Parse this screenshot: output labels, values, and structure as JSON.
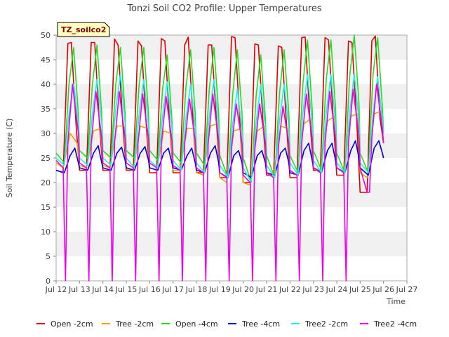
{
  "chart_data": {
    "type": "line",
    "title": "Tonzi Soil CO2 Profile: Upper Temperatures",
    "xlabel": "Time",
    "ylabel": "Soil Temperature (C)",
    "tag": "TZ_soilco2",
    "xlim": [
      12,
      27
    ],
    "ylim": [
      0,
      50
    ],
    "x_ticks": [
      12,
      13,
      14,
      15,
      16,
      17,
      18,
      19,
      20,
      21,
      22,
      23,
      24,
      25,
      26,
      27
    ],
    "x_tick_labels": [
      "Jul 12",
      "Jul 13",
      "Jul 14",
      "Jul 15",
      "Jul 16",
      "Jul 17",
      "Jul 18",
      "Jul 19",
      "Jul 20",
      "Jul 21",
      "Jul 22",
      "Jul 23",
      "Jul 24",
      "Jul 25",
      "Jul 26",
      "Jul 27"
    ],
    "y_ticks": [
      0,
      5,
      10,
      15,
      20,
      25,
      30,
      35,
      40,
      45,
      50
    ],
    "grid": "horizontal bands",
    "legend_position": "bottom",
    "series": [
      {
        "name": "Open -2cm",
        "color": "#dd0000",
        "x": [
          12.0,
          12.3,
          12.5,
          12.65,
          12.85,
          13.0,
          13.3,
          13.5,
          13.65,
          13.85,
          14.0,
          14.3,
          14.5,
          14.65,
          14.85,
          15.0,
          15.3,
          15.5,
          15.65,
          15.85,
          16.0,
          16.3,
          16.5,
          16.65,
          16.85,
          17.0,
          17.3,
          17.5,
          17.65,
          17.85,
          18.0,
          18.3,
          18.5,
          18.65,
          18.85,
          19.0,
          19.3,
          19.5,
          19.65,
          19.85,
          20.0,
          20.3,
          20.5,
          20.65,
          20.85,
          21.0,
          21.3,
          21.5,
          21.65,
          21.85,
          22.0,
          22.3,
          22.5,
          22.65,
          22.85,
          23.0,
          23.3,
          23.5,
          23.65,
          23.85,
          24.0,
          24.3,
          24.5,
          24.65,
          24.85,
          25.0,
          25.3,
          25.5,
          25.65,
          25.85,
          26.0
        ],
        "values": [
          22.5,
          22.0,
          48.3,
          48.5,
          32.0,
          22.5,
          22.5,
          48.5,
          48.5,
          32.0,
          22.5,
          22.5,
          49.2,
          48.0,
          32.0,
          22.5,
          22.5,
          48.8,
          47.8,
          32.0,
          22.0,
          22.0,
          49.3,
          48.8,
          32.0,
          22.0,
          22.0,
          48.0,
          49.6,
          33.0,
          22.0,
          22.0,
          48.0,
          48.0,
          33.0,
          21.0,
          21.0,
          49.7,
          49.5,
          33.0,
          20.0,
          20.0,
          48.2,
          48.0,
          32.0,
          21.5,
          21.5,
          47.8,
          47.5,
          32.0,
          21.0,
          21.0,
          49.5,
          49.6,
          33.0,
          22.5,
          22.5,
          49.5,
          49.0,
          33.0,
          21.5,
          21.5,
          48.8,
          48.5,
          33.0,
          18.0,
          18.0,
          48.8,
          49.8,
          33.0,
          28.0
        ]
      },
      {
        "name": "Tree -2cm",
        "color": "#f0a000",
        "x": [
          12.0,
          12.3,
          12.6,
          12.9,
          13.0,
          13.3,
          13.6,
          13.9,
          14.0,
          14.3,
          14.6,
          14.9,
          15.0,
          15.3,
          15.6,
          15.9,
          16.0,
          16.3,
          16.6,
          16.9,
          17.0,
          17.3,
          17.6,
          17.9,
          18.0,
          18.3,
          18.6,
          18.9,
          19.0,
          19.3,
          19.6,
          19.9,
          20.0,
          20.3,
          20.6,
          20.9,
          21.0,
          21.3,
          21.6,
          21.9,
          22.0,
          22.3,
          22.6,
          22.9,
          23.0,
          23.3,
          23.6,
          23.9,
          24.0,
          24.3,
          24.6,
          24.9,
          25.0,
          25.3,
          25.6,
          25.9,
          26.0
        ],
        "values": [
          24.0,
          23.0,
          30.0,
          28.0,
          23.5,
          23.0,
          30.5,
          31.0,
          23.5,
          23.0,
          31.5,
          31.5,
          23.0,
          22.5,
          31.5,
          31.0,
          23.0,
          22.5,
          30.5,
          30.0,
          22.5,
          22.5,
          31.0,
          31.0,
          22.0,
          21.5,
          31.5,
          32.0,
          21.0,
          20.0,
          30.5,
          31.0,
          20.0,
          19.5,
          30.5,
          31.5,
          22.0,
          21.5,
          31.5,
          31.0,
          22.5,
          21.5,
          32.0,
          33.0,
          23.0,
          22.5,
          32.5,
          33.5,
          23.0,
          22.0,
          33.5,
          34.0,
          22.0,
          21.0,
          34.0,
          34.5,
          30.0
        ]
      },
      {
        "name": "Open -4cm",
        "color": "#22dd22",
        "x": [
          12.0,
          12.35,
          12.55,
          12.75,
          12.95,
          13.0,
          13.35,
          13.55,
          13.75,
          13.95,
          14.0,
          14.35,
          14.55,
          14.75,
          14.95,
          15.0,
          15.35,
          15.55,
          15.75,
          15.95,
          16.0,
          16.35,
          16.55,
          16.75,
          16.95,
          17.0,
          17.35,
          17.55,
          17.75,
          17.95,
          18.0,
          18.35,
          18.55,
          18.75,
          18.95,
          19.0,
          19.35,
          19.55,
          19.75,
          19.95,
          20.0,
          20.35,
          20.55,
          20.75,
          20.95,
          21.0,
          21.35,
          21.55,
          21.75,
          21.95,
          22.0,
          22.35,
          22.55,
          22.75,
          22.95,
          23.0,
          23.35,
          23.55,
          23.75,
          23.95,
          24.0,
          24.35,
          24.55,
          24.75,
          24.95,
          25.0,
          25.35,
          25.55,
          25.75,
          25.95,
          26.0
        ],
        "values": [
          26.0,
          24.0,
          40.0,
          47.5,
          34.0,
          26.5,
          25.0,
          40.0,
          48.0,
          34.0,
          26.5,
          25.0,
          40.0,
          47.5,
          34.0,
          26.5,
          25.0,
          40.0,
          47.5,
          34.0,
          26.5,
          24.5,
          39.0,
          46.0,
          33.0,
          26.0,
          24.0,
          39.5,
          47.0,
          34.0,
          26.0,
          23.5,
          39.0,
          47.5,
          34.0,
          25.5,
          21.0,
          38.0,
          47.0,
          34.0,
          25.0,
          20.0,
          37.5,
          46.0,
          33.0,
          25.5,
          21.0,
          38.0,
          47.0,
          34.0,
          25.5,
          22.0,
          40.0,
          49.0,
          35.0,
          26.5,
          22.5,
          41.0,
          49.0,
          35.0,
          26.0,
          22.0,
          41.5,
          50.0,
          36.0,
          26.0,
          22.0,
          42.0,
          49.5,
          35.5,
          30.0
        ]
      },
      {
        "name": "Tree -4cm",
        "color": "#0000cc",
        "x": [
          12.0,
          12.35,
          12.6,
          12.8,
          12.95,
          13.0,
          13.35,
          13.6,
          13.8,
          13.95,
          14.0,
          14.35,
          14.6,
          14.8,
          14.95,
          15.0,
          15.35,
          15.6,
          15.8,
          15.95,
          16.0,
          16.35,
          16.6,
          16.8,
          16.95,
          17.0,
          17.35,
          17.6,
          17.8,
          17.95,
          18.0,
          18.35,
          18.6,
          18.8,
          18.95,
          19.0,
          19.35,
          19.6,
          19.8,
          19.95,
          20.0,
          20.35,
          20.6,
          20.8,
          20.95,
          21.0,
          21.35,
          21.6,
          21.8,
          21.95,
          22.0,
          22.35,
          22.6,
          22.8,
          22.95,
          23.0,
          23.35,
          23.6,
          23.8,
          23.95,
          24.0,
          24.35,
          24.6,
          24.8,
          24.95,
          25.0,
          25.35,
          25.6,
          25.8,
          25.95,
          26.0
        ],
        "values": [
          22.5,
          22.0,
          25.5,
          27.0,
          24.0,
          23.0,
          22.5,
          26.0,
          27.5,
          24.0,
          23.0,
          22.5,
          26.0,
          27.2,
          24.5,
          23.0,
          22.5,
          26.0,
          27.3,
          24.5,
          23.0,
          22.5,
          26.0,
          27.0,
          24.0,
          23.0,
          22.5,
          25.5,
          27.0,
          24.0,
          22.5,
          22.0,
          26.0,
          27.5,
          24.0,
          22.0,
          21.0,
          25.5,
          26.5,
          24.0,
          22.0,
          21.0,
          25.5,
          26.5,
          24.0,
          22.0,
          21.5,
          26.0,
          27.0,
          24.0,
          22.0,
          21.5,
          26.5,
          28.0,
          24.5,
          23.0,
          22.0,
          26.5,
          28.0,
          24.5,
          23.0,
          22.0,
          26.5,
          28.5,
          25.0,
          23.0,
          21.5,
          27.0,
          28.5,
          26.0,
          25.0
        ]
      },
      {
        "name": "Tree2 -2cm",
        "color": "#22eeee",
        "x": [
          12.0,
          12.35,
          12.55,
          12.75,
          12.95,
          13.0,
          13.35,
          13.55,
          13.75,
          13.95,
          14.0,
          14.35,
          14.55,
          14.75,
          14.95,
          15.0,
          15.35,
          15.55,
          15.75,
          15.95,
          16.0,
          16.35,
          16.55,
          16.75,
          16.95,
          17.0,
          17.35,
          17.55,
          17.75,
          17.95,
          18.0,
          18.35,
          18.55,
          18.75,
          18.95,
          19.0,
          19.35,
          19.55,
          19.75,
          19.95,
          20.0,
          20.35,
          20.55,
          20.75,
          20.95,
          21.0,
          21.35,
          21.55,
          21.75,
          21.95,
          22.0,
          22.35,
          22.55,
          22.75,
          22.95,
          23.0,
          23.35,
          23.55,
          23.75,
          23.95,
          24.0,
          24.35,
          24.55,
          24.75,
          24.95,
          25.0,
          25.35,
          25.55,
          25.75,
          25.95,
          26.0
        ],
        "values": [
          25.0,
          23.5,
          34.0,
          40.0,
          32.0,
          25.0,
          23.5,
          34.0,
          41.0,
          32.0,
          25.0,
          23.5,
          35.0,
          42.0,
          32.0,
          25.0,
          23.0,
          34.0,
          41.0,
          31.5,
          24.5,
          23.0,
          33.5,
          40.5,
          31.0,
          24.5,
          22.5,
          33.0,
          40.0,
          31.0,
          24.0,
          22.0,
          33.5,
          41.0,
          31.0,
          23.5,
          21.0,
          32.0,
          39.0,
          30.5,
          23.0,
          20.0,
          32.0,
          40.0,
          31.0,
          23.5,
          21.0,
          32.5,
          40.0,
          31.0,
          24.0,
          21.5,
          34.0,
          42.0,
          32.0,
          24.5,
          22.0,
          34.0,
          42.0,
          32.0,
          24.0,
          22.0,
          34.0,
          42.0,
          32.5,
          24.0,
          22.0,
          34.0,
          41.5,
          33.0,
          30.0
        ]
      },
      {
        "name": "Tree2 -4cm",
        "color": "#ee00ee",
        "x": [
          12.0,
          12.3,
          12.4,
          12.5,
          12.7,
          12.95,
          13.0,
          13.3,
          13.4,
          13.5,
          13.7,
          13.95,
          14.0,
          14.3,
          14.4,
          14.5,
          14.7,
          14.95,
          15.0,
          15.3,
          15.4,
          15.5,
          15.7,
          15.95,
          16.0,
          16.3,
          16.4,
          16.5,
          16.7,
          16.95,
          17.0,
          17.3,
          17.4,
          17.5,
          17.7,
          17.95,
          18.0,
          18.3,
          18.4,
          18.5,
          18.7,
          18.95,
          19.0,
          19.3,
          19.4,
          19.5,
          19.7,
          19.95,
          20.0,
          20.3,
          20.4,
          20.5,
          20.7,
          20.95,
          21.0,
          21.3,
          21.4,
          21.5,
          21.7,
          21.95,
          22.0,
          22.3,
          22.4,
          22.5,
          22.7,
          22.95,
          23.0,
          23.3,
          23.4,
          23.5,
          23.7,
          23.95,
          24.0,
          24.3,
          24.4,
          24.5,
          24.7,
          24.95,
          25.0,
          25.3,
          25.4,
          25.5,
          25.7,
          25.95,
          26.0
        ],
        "values": [
          24.5,
          23.0,
          0.0,
          28.0,
          40.0,
          30.0,
          24.0,
          23.0,
          0.0,
          28.0,
          38.5,
          29.0,
          24.0,
          23.0,
          0.0,
          28.0,
          38.5,
          29.0,
          24.0,
          23.0,
          0.0,
          28.0,
          38.0,
          29.0,
          24.0,
          23.0,
          0.0,
          28.0,
          37.5,
          28.5,
          23.5,
          22.5,
          0.0,
          28.0,
          37.0,
          28.5,
          23.0,
          22.0,
          0.0,
          28.0,
          38.0,
          28.5,
          22.0,
          21.0,
          0.0,
          27.0,
          36.0,
          28.0,
          21.5,
          20.0,
          0.0,
          27.0,
          36.0,
          28.0,
          22.0,
          21.0,
          0.0,
          27.0,
          35.5,
          28.0,
          22.5,
          21.5,
          0.0,
          28.0,
          38.0,
          29.0,
          23.0,
          22.0,
          0.0,
          28.0,
          38.5,
          29.0,
          23.0,
          22.0,
          0.0,
          28.0,
          39.0,
          29.5,
          23.0,
          18.0,
          18.0,
          29.0,
          40.0,
          31.0,
          28.0
        ]
      }
    ]
  }
}
